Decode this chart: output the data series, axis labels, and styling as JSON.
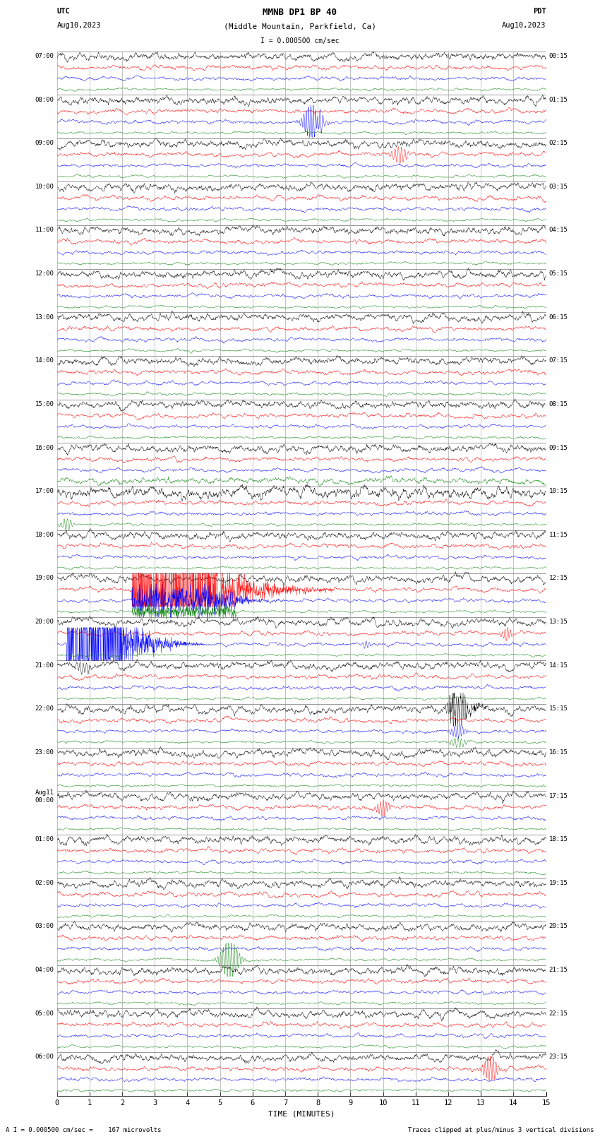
{
  "title_line1": "MMNB DP1 BP 40",
  "title_line2": "(Middle Mountain, Parkfield, Ca)",
  "scale_label": "I = 0.000500 cm/sec",
  "utc_label": "UTC",
  "utc_date": "Aug10,2023",
  "pdt_label": "PDT",
  "pdt_date": "Aug10,2023",
  "xlabel": "TIME (MINUTES)",
  "footer_left": "A I = 0.000500 cm/sec =    167 microvolts",
  "footer_right": "Traces clipped at plus/minus 3 vertical divisions",
  "bg_color": "#ffffff",
  "trace_colors": [
    "#000000",
    "#ff0000",
    "#0000ff",
    "#008000"
  ],
  "grid_color": "#888888",
  "n_rows": 24,
  "minutes_per_row": 15,
  "left_labels": [
    "07:00",
    "08:00",
    "09:00",
    "10:00",
    "11:00",
    "12:00",
    "13:00",
    "14:00",
    "15:00",
    "16:00",
    "17:00",
    "18:00",
    "19:00",
    "20:00",
    "21:00",
    "22:00",
    "23:00",
    "Aug11\n00:00",
    "01:00",
    "02:00",
    "03:00",
    "04:00",
    "05:00",
    "06:00"
  ],
  "right_labels": [
    "00:15",
    "01:15",
    "02:15",
    "03:15",
    "04:15",
    "05:15",
    "06:15",
    "07:15",
    "08:15",
    "09:15",
    "10:15",
    "11:15",
    "12:15",
    "13:15",
    "14:15",
    "15:15",
    "16:15",
    "17:15",
    "18:15",
    "19:15",
    "20:15",
    "21:15",
    "22:15",
    "23:15"
  ]
}
